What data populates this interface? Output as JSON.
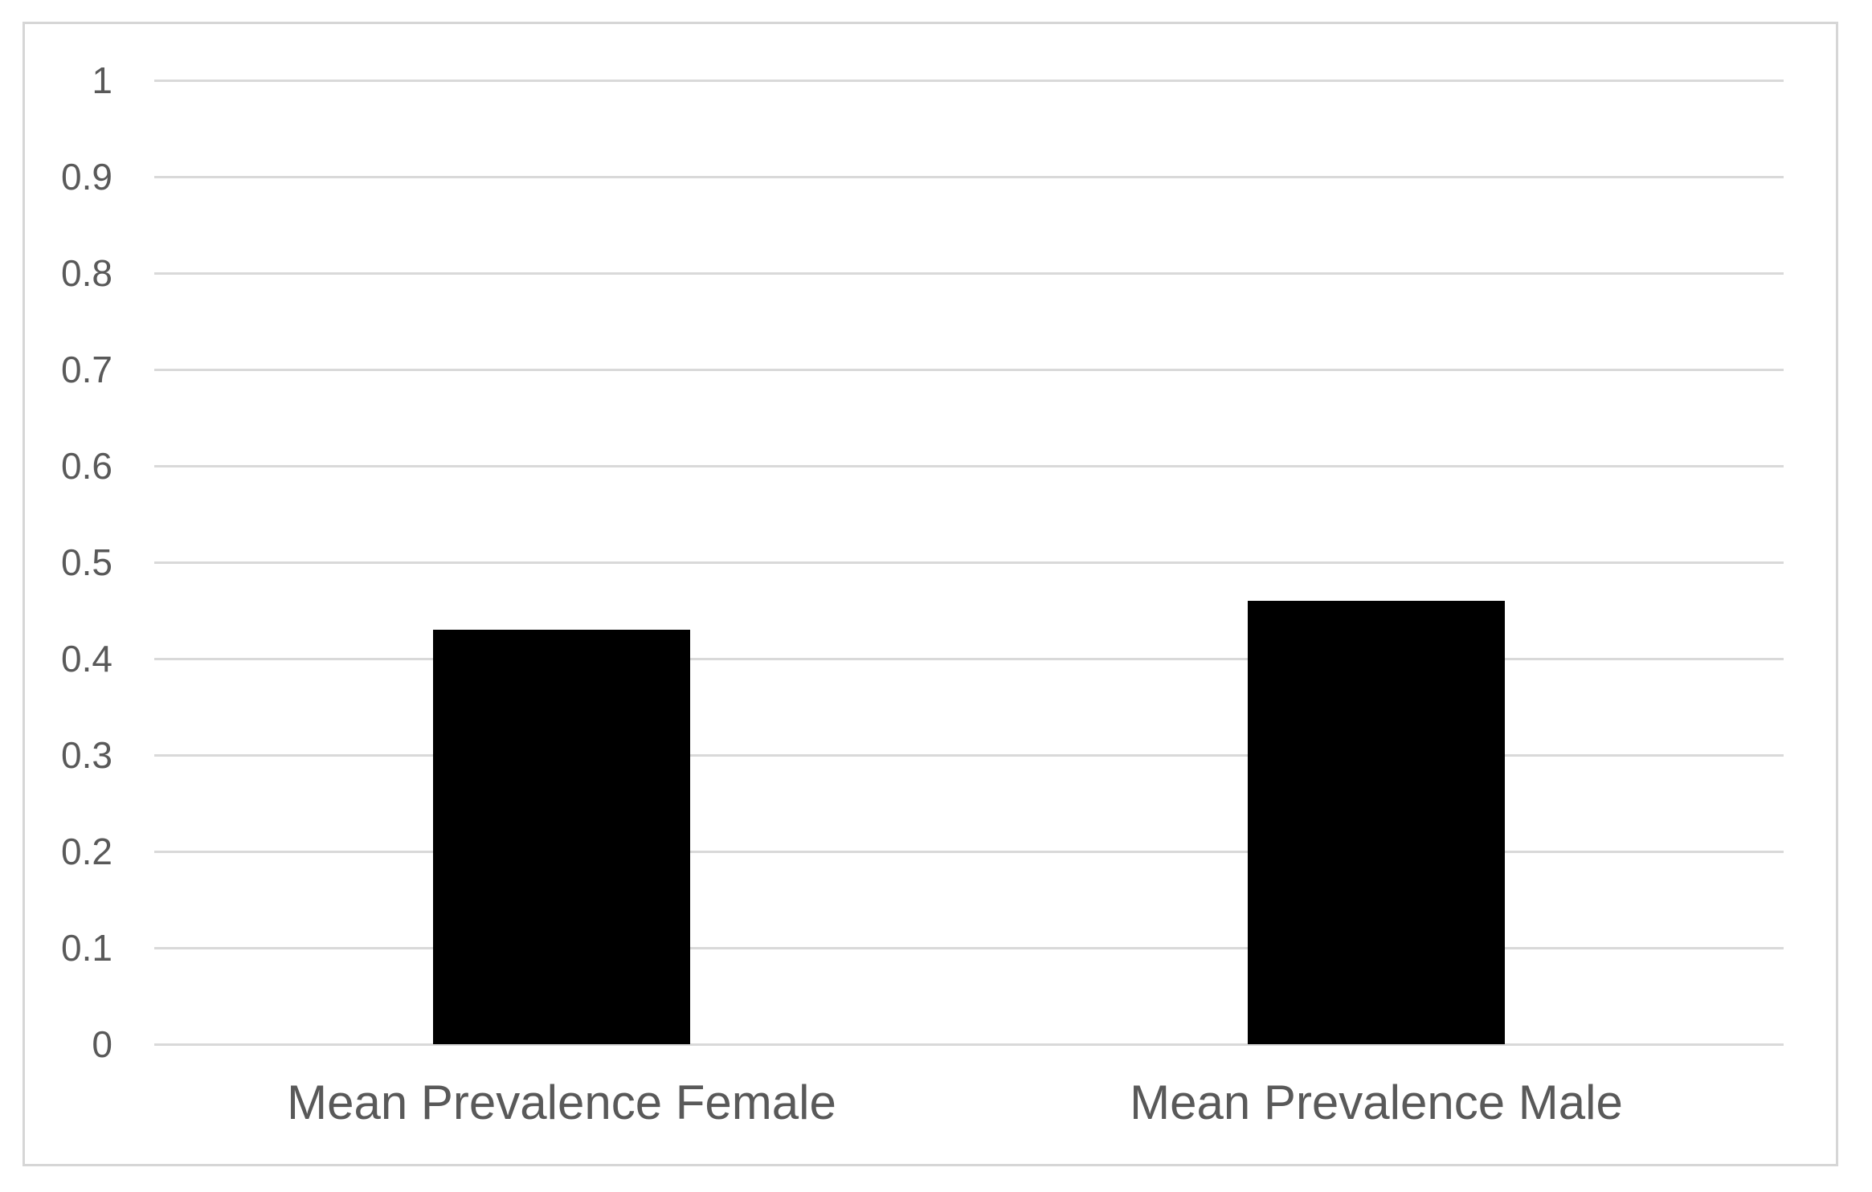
{
  "chart_data": {
    "type": "bar",
    "categories": [
      "Mean Prevalence Female",
      "Mean Prevalence Male"
    ],
    "values": [
      0.43,
      0.46
    ],
    "title": "",
    "xlabel": "",
    "ylabel": "",
    "ylim": [
      0,
      1
    ],
    "ytick_step": 0.1,
    "ytick_labels": [
      "0",
      "0.1",
      "0.2",
      "0.3",
      "0.4",
      "0.5",
      "0.6",
      "0.7",
      "0.8",
      "0.9",
      "1"
    ],
    "grid": "horizontal-only",
    "legend": "none",
    "bar_color": "#000000",
    "gridline_color": "#d9d9d9",
    "axis_label_color": "#595959",
    "frame_border_color": "#d6d6d6",
    "background_color": "#ffffff"
  }
}
